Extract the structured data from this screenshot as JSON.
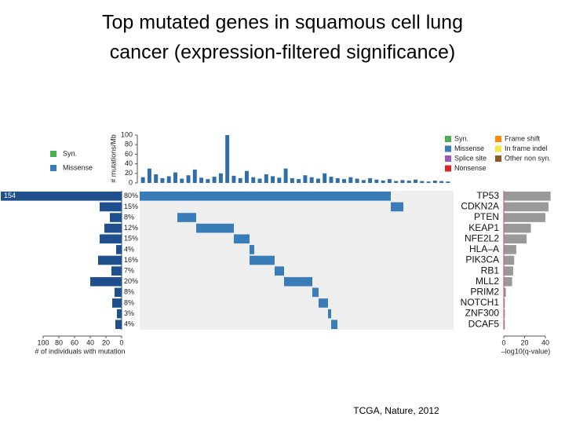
{
  "title": [
    "Top mutated genes in squamous cell lung",
    "cancer (expression-filtered significance)"
  ],
  "source": "TCGA, Nature, 2012",
  "legend_left": [
    {
      "name": "Syn.",
      "color": "#4caf50"
    },
    {
      "name": "Missense",
      "color": "#3a7cb8"
    }
  ],
  "legend_right": [
    {
      "name": "Syn.",
      "color": "#4caf50"
    },
    {
      "name": "Missense",
      "color": "#3a7cb8"
    },
    {
      "name": "Splice site",
      "color": "#9b59b6"
    },
    {
      "name": "Nonsense",
      "color": "#d62728"
    },
    {
      "name": "Frame shift",
      "color": "#ff8c00"
    },
    {
      "name": "In frame indel",
      "color": "#f5e642"
    },
    {
      "name": "Other non syn.",
      "color": "#8b5a2b"
    }
  ],
  "chart_data": [
    {
      "type": "bar",
      "y_label": "# mutations/Mb",
      "color": "#2f6ea8",
      "values": [
        12,
        30,
        18,
        10,
        14,
        22,
        9,
        16,
        28,
        11,
        8,
        13,
        20,
        100,
        15,
        10,
        25,
        12,
        9,
        18,
        14,
        11,
        30,
        10,
        8,
        16,
        12,
        9,
        20,
        13,
        10,
        8,
        12,
        9,
        6,
        10,
        7,
        5,
        8,
        4,
        6,
        5,
        7,
        4,
        3,
        5,
        4,
        3
      ],
      "ylim": [
        0,
        100
      ],
      "yticks": [
        0,
        20,
        40,
        60,
        80,
        100
      ]
    },
    {
      "type": "hbar",
      "x_label": "# of individuals with mutation",
      "color": "#1f4f8c",
      "values": [
        154,
        28,
        15,
        22,
        28,
        7,
        30,
        13,
        40,
        9,
        12,
        6,
        8
      ],
      "value_labels": [
        "154",
        null,
        null,
        null,
        null,
        null,
        null,
        null,
        null,
        null,
        null,
        null,
        null
      ],
      "xlim": [
        0,
        100
      ],
      "xticks": [
        0,
        20,
        40,
        60,
        80,
        100
      ]
    },
    {
      "type": "oncoprint",
      "rows": [
        "TP53",
        "CDKN2A",
        "PTEN",
        "KEAP1",
        "NFE2L2",
        "HLA–A",
        "PIK3CA",
        "RB1",
        "MLL2",
        "PRIM2",
        "NOTCH1",
        "ZNF300",
        "DCAF5"
      ],
      "values": [
        80,
        15,
        8,
        12,
        15,
        4,
        16,
        7,
        20,
        8,
        8,
        3,
        4
      ],
      "value_labels": [
        "80%",
        "15%",
        "8%",
        "12%",
        "15%",
        "4%",
        "16%",
        "7%",
        "20%",
        "8%",
        "8%",
        "3%",
        "4%"
      ],
      "color": "#3a7cb8",
      "xlim": [
        0,
        200
      ],
      "runs": [
        [
          [
            0,
            160
          ]
        ],
        [
          [
            160,
            168
          ]
        ],
        [
          [
            24,
            36
          ]
        ],
        [
          [
            36,
            60
          ]
        ],
        [
          [
            60,
            70
          ]
        ],
        [
          [
            70,
            73
          ]
        ],
        [
          [
            70,
            86
          ]
        ],
        [
          [
            86,
            92
          ]
        ],
        [
          [
            92,
            110
          ]
        ],
        [
          [
            110,
            114
          ]
        ],
        [
          [
            114,
            120
          ]
        ],
        [
          [
            120,
            122
          ]
        ],
        [
          [
            122,
            126
          ]
        ]
      ]
    },
    {
      "type": "hbar",
      "x_label": "–log10(q-value)",
      "color": "#999999",
      "values": [
        45,
        43,
        40,
        26,
        22,
        12,
        10,
        9,
        8,
        2,
        1,
        1,
        1
      ],
      "xlim": [
        0,
        40
      ],
      "xticks": [
        0,
        20,
        40
      ]
    }
  ]
}
